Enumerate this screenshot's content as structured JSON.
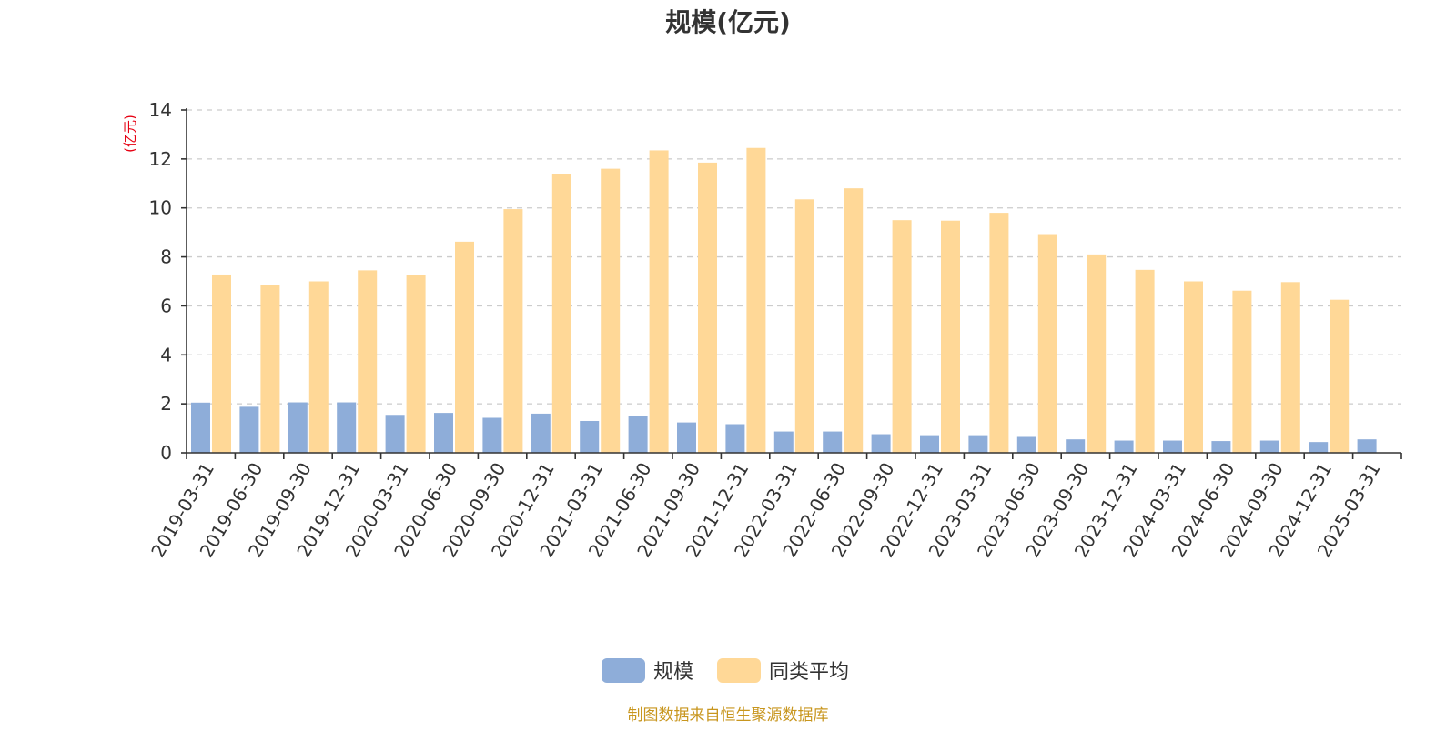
{
  "chart_data": {
    "type": "bar",
    "title": "规模(亿元)",
    "ylabel": "(亿元)",
    "ylim": [
      0,
      14
    ],
    "yticks": [
      0,
      2,
      4,
      6,
      8,
      10,
      12,
      14
    ],
    "grid": true,
    "legend_position": "bottom-center",
    "categories": [
      "2019-03-31",
      "2019-06-30",
      "2019-09-30",
      "2019-12-31",
      "2020-03-31",
      "2020-06-30",
      "2020-09-30",
      "2020-12-31",
      "2021-03-31",
      "2021-06-30",
      "2021-09-30",
      "2021-12-31",
      "2022-03-31",
      "2022-06-30",
      "2022-09-30",
      "2022-12-31",
      "2023-03-31",
      "2023-06-30",
      "2023-09-30",
      "2023-12-31",
      "2024-03-31",
      "2024-06-30",
      "2024-09-30",
      "2024-12-31",
      "2025-03-31"
    ],
    "series": [
      {
        "name": "规模",
        "color": "#8eadd9",
        "values": [
          2.05,
          1.88,
          2.06,
          2.06,
          1.55,
          1.63,
          1.43,
          1.6,
          1.3,
          1.51,
          1.24,
          1.17,
          0.87,
          0.87,
          0.76,
          0.72,
          0.72,
          0.65,
          0.55,
          0.5,
          0.5,
          0.48,
          0.5,
          0.44,
          0.55
        ]
      },
      {
        "name": "同类平均",
        "color": "#ffd897",
        "values": [
          7.28,
          6.85,
          7.0,
          7.45,
          7.25,
          8.62,
          9.95,
          11.4,
          11.6,
          12.35,
          11.85,
          12.45,
          10.35,
          10.8,
          9.5,
          9.48,
          9.8,
          8.93,
          8.1,
          7.47,
          7.0,
          6.62,
          6.97,
          6.25,
          null
        ]
      }
    ]
  },
  "colors": {
    "axis_label_unit": "#e60012",
    "footer": "#c8961e"
  },
  "footer": "制图数据来自恒生聚源数据库"
}
